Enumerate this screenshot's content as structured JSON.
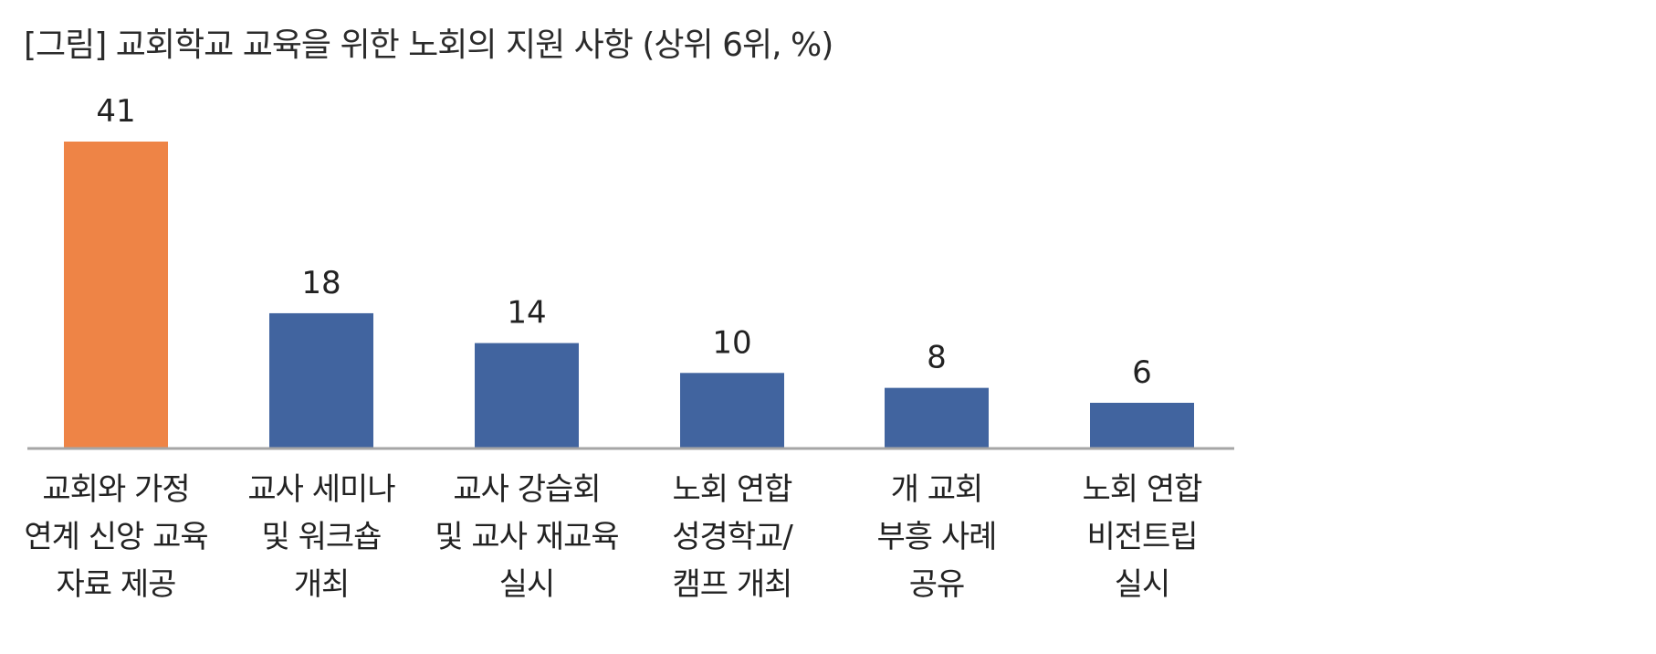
{
  "chart_data": {
    "type": "bar",
    "title": "[그림] 교회학교 교육을 위한 노회의 지원 사항 (상위 6위, %)",
    "categories": [
      [
        "교회와 가정",
        "연계 신앙 교육",
        "자료 제공"
      ],
      [
        "교사 세미나",
        "및 워크숍",
        "개최"
      ],
      [
        "교사 강습회",
        "및 교사 재교육",
        "실시"
      ],
      [
        "노회 연합",
        "성경학교/",
        "캠프 개최"
      ],
      [
        "개 교회",
        "부흥 사례",
        "공유"
      ],
      [
        "노회 연합",
        "비전트립",
        "실시"
      ]
    ],
    "values": [
      41,
      18,
      14,
      10,
      8,
      6
    ],
    "data_labels": [
      "41",
      "18",
      "14",
      "10",
      "8",
      "6"
    ],
    "colors": [
      "#ee8446",
      "#41649f",
      "#41649f",
      "#41649f",
      "#41649f",
      "#41649f"
    ],
    "axis_color": "#a6a6a6",
    "xlabel": "",
    "ylabel": "",
    "ylim": [
      0,
      41
    ],
    "grid": false,
    "legend": "none"
  }
}
